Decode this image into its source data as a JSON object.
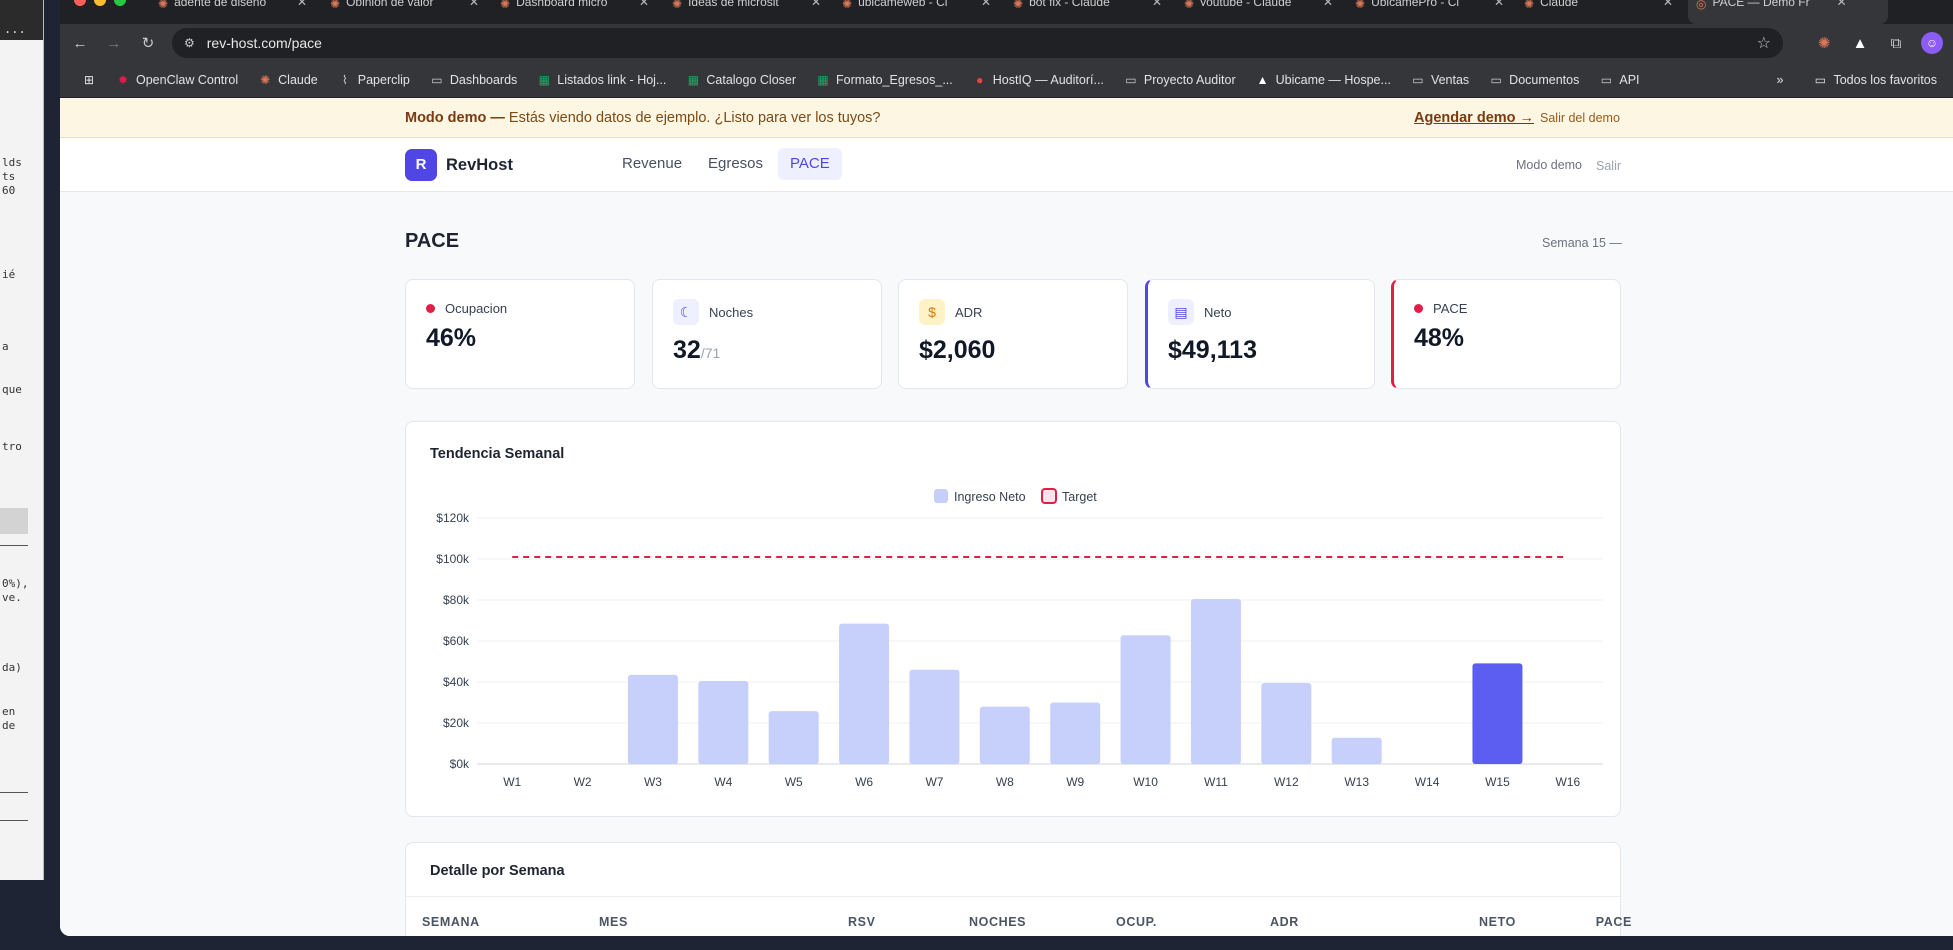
{
  "terminal": {
    "menu": "...",
    "lines": [
      {
        "t": "lds",
        "y": 156
      },
      {
        "t": "ts",
        "y": 170
      },
      {
        "t": "60",
        "y": 184
      },
      {
        "t": "ié",
        "y": 268
      },
      {
        "t": "a",
        "y": 340
      },
      {
        "t": "que",
        "y": 383
      },
      {
        "t": "tro",
        "y": 440
      },
      {
        "t": "0%),",
        "y": 577
      },
      {
        "t": "ve.",
        "y": 591
      },
      {
        "t": "da)",
        "y": 661
      },
      {
        "t": "en",
        "y": 705
      },
      {
        "t": "de",
        "y": 719
      }
    ]
  },
  "browser": {
    "tabs": [
      {
        "label": "agente de diseño",
        "active": false
      },
      {
        "label": "Opinión de valor",
        "active": false
      },
      {
        "label": "Dashboard micro",
        "active": false
      },
      {
        "label": "Ideas de microsit",
        "active": false
      },
      {
        "label": "ubicameweb - Cl",
        "active": false
      },
      {
        "label": "bot fix - Claude",
        "active": false
      },
      {
        "label": "youtube - Claude",
        "active": false
      },
      {
        "label": "UbicamePro - Cl",
        "active": false
      },
      {
        "label": "Claude",
        "active": false
      },
      {
        "label": "PACE — Demo Fr",
        "active": true
      }
    ],
    "url": "rev-host.com/pace",
    "bookmarks": [
      {
        "label": "OpenClaw Control",
        "icon": "lobster-icon"
      },
      {
        "label": "Claude",
        "icon": "claude-icon"
      },
      {
        "label": "Paperclip",
        "icon": "paperclip-icon"
      },
      {
        "label": "Dashboards",
        "icon": "folder-icon"
      },
      {
        "label": "Listados link - Hoj...",
        "icon": "sheets-icon"
      },
      {
        "label": "Catalogo Closer",
        "icon": "sheets-icon"
      },
      {
        "label": "Formato_Egresos_...",
        "icon": "sheets-icon"
      },
      {
        "label": "HostIQ — Auditorí...",
        "icon": "hostiq-icon"
      },
      {
        "label": "Proyecto Auditor",
        "icon": "folder-icon"
      },
      {
        "label": "Ubicame — Hospe...",
        "icon": "triangle-icon"
      },
      {
        "label": "Ventas",
        "icon": "folder-icon"
      },
      {
        "label": "Documentos",
        "icon": "folder-icon"
      },
      {
        "label": "API",
        "icon": "folder-icon"
      }
    ],
    "bookmarks_more": "»",
    "all_bookmarks": "Todos los favoritos"
  },
  "banner": {
    "bold": "Modo demo —",
    "text": " Estás viendo datos de ejemplo. ¿Listo para ver los tuyos?",
    "cta": "Agendar demo →",
    "exit": "Salir del demo"
  },
  "nav": {
    "logo_letter": "R",
    "brand": "RevHost",
    "links": [
      "Revenue",
      "Egresos",
      "PACE"
    ],
    "active": "PACE",
    "mode": "Modo demo",
    "exit": "Salir"
  },
  "page": {
    "title": "PACE",
    "week": "Semana 15 —"
  },
  "kpis": [
    {
      "label": "Ocupacion",
      "value": "46%",
      "suffix": "",
      "icon": "red-dot-icon"
    },
    {
      "label": "Noches",
      "value": "32",
      "suffix": "/71",
      "icon": "moon-icon"
    },
    {
      "label": "ADR",
      "value": "$2,060",
      "suffix": "",
      "icon": "coin-icon"
    },
    {
      "label": "Neto",
      "value": "$49,113",
      "suffix": "",
      "icon": "money-icon"
    },
    {
      "label": "PACE",
      "value": "48%",
      "suffix": "",
      "icon": "red-dot-icon"
    }
  ],
  "trend_title": "Tendencia Semanal",
  "chart_data": {
    "type": "bar",
    "categories": [
      "W1",
      "W2",
      "W3",
      "W4",
      "W5",
      "W6",
      "W7",
      "W8",
      "W9",
      "W10",
      "W11",
      "W12",
      "W13",
      "W14",
      "W15",
      "W16"
    ],
    "series": [
      {
        "name": "Ingreso Neto",
        "values": [
          0,
          0,
          43500,
          40500,
          25800,
          68500,
          46000,
          28000,
          30000,
          62800,
          80500,
          39500,
          12800,
          0,
          49113,
          0
        ],
        "color": "#c7d0fb",
        "highlight_index": 14,
        "highlight_color": "#5b5ef0"
      },
      {
        "name": "Target",
        "values": [
          101000,
          101000,
          101000,
          101000,
          101000,
          101000,
          101000,
          101000,
          101000,
          101000,
          101000,
          101000,
          101000,
          101000,
          101000,
          101000
        ],
        "color": "#e11d48",
        "style": "dashed"
      }
    ],
    "yticks": [
      "$0k",
      "$20k",
      "$40k",
      "$60k",
      "$80k",
      "$100k",
      "$120k"
    ],
    "ylim": [
      0,
      120000
    ],
    "grid": true,
    "legend": "top-center"
  },
  "detail": {
    "title": "Detalle por Semana",
    "columns": [
      "SEMANA",
      "MES",
      "RSV",
      "NOCHES",
      "OCUP.",
      "ADR",
      "NETO",
      "PACE"
    ]
  }
}
